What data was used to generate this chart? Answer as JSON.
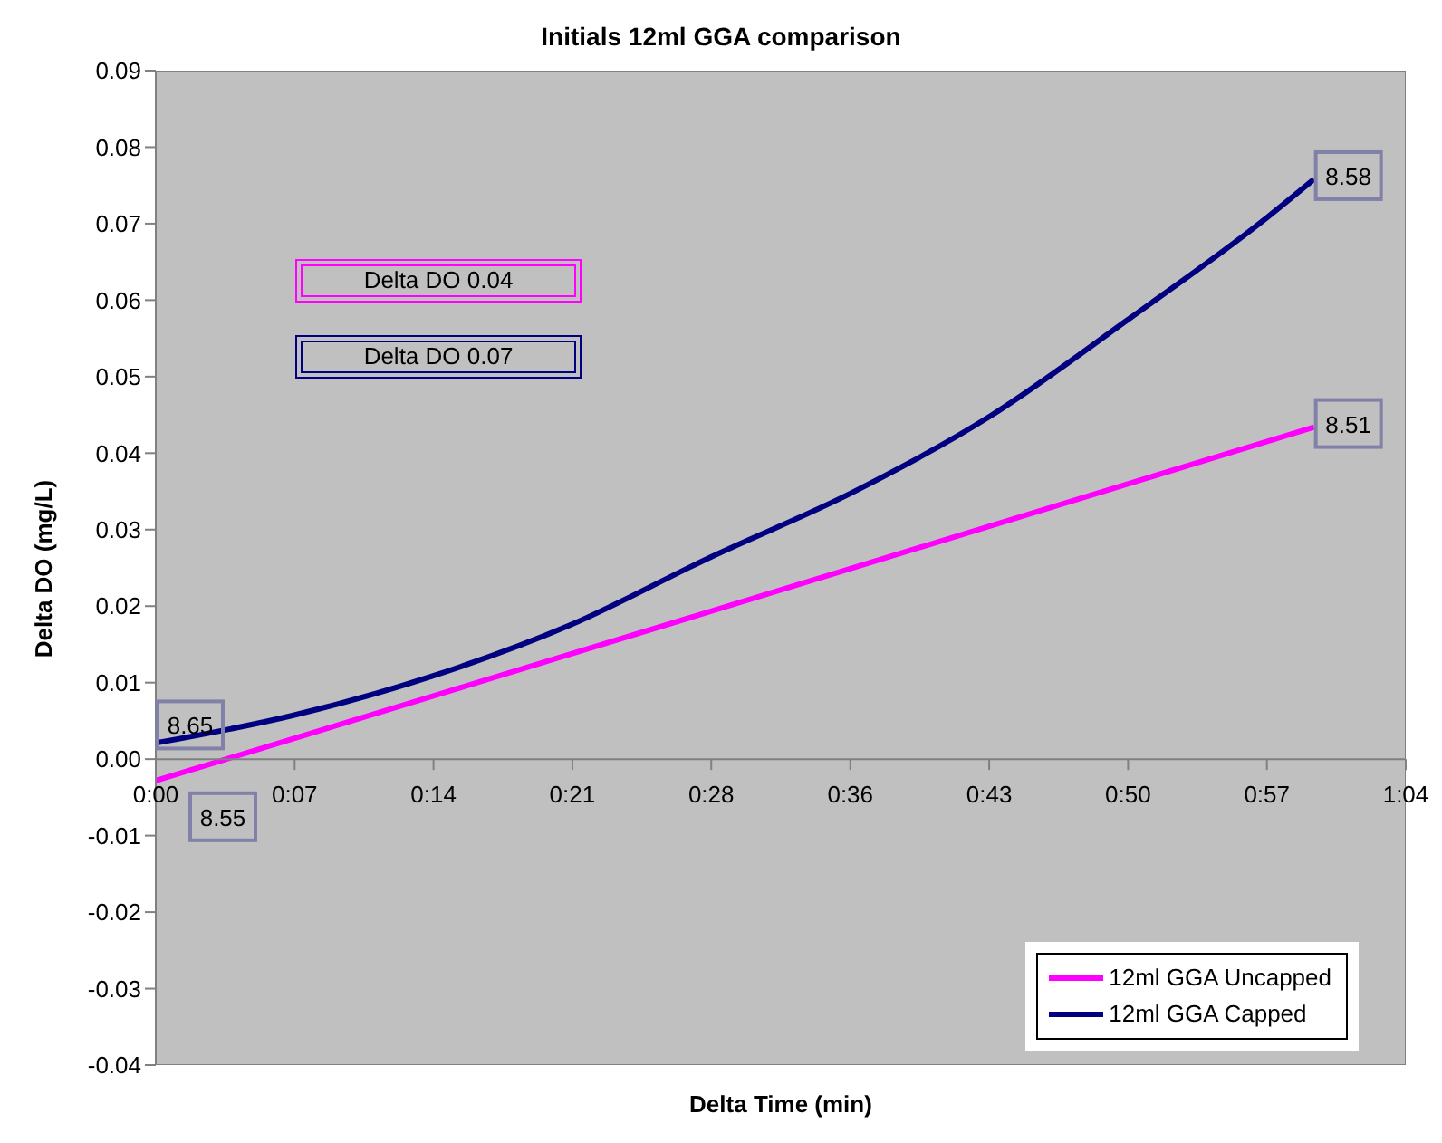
{
  "chart_data": {
    "type": "line",
    "title": "Initials 12ml GGA comparison",
    "xlabel": "Delta Time (min)",
    "ylabel": "Delta DO (mg/L)",
    "series": [
      {
        "name": "12ml GGA Uncapped",
        "color": "#ff00ff",
        "x": [
          0,
          21.2,
          59.3
        ],
        "values": [
          -0.0028,
          0.0137,
          0.0434
        ]
      },
      {
        "name": "12ml GGA Capped",
        "color": "#000080",
        "x": [
          0,
          7.0,
          14.1,
          21.2,
          28.4,
          35.7,
          42.7,
          49.8,
          56.9,
          59.3
        ],
        "values": [
          0.0021,
          0.0057,
          0.0108,
          0.0175,
          0.0264,
          0.0349,
          0.0448,
          0.0575,
          0.0708,
          0.0758
        ]
      }
    ],
    "annotations": [
      "Delta DO 0.04",
      "Delta DO 0.07",
      "8.55",
      "8.51",
      "8.65",
      "8.58"
    ],
    "xlim": [
      0,
      64
    ],
    "xticks": [
      {
        "value": 0,
        "label": "0:00"
      },
      {
        "value": 7.11,
        "label": "0:07"
      },
      {
        "value": 14.22,
        "label": "0:14"
      },
      {
        "value": 21.33,
        "label": "0:21"
      },
      {
        "value": 28.44,
        "label": "0:28"
      },
      {
        "value": 35.56,
        "label": "0:36"
      },
      {
        "value": 42.67,
        "label": "0:43"
      },
      {
        "value": 49.78,
        "label": "0:50"
      },
      {
        "value": 56.89,
        "label": "0:57"
      },
      {
        "value": 64,
        "label": "1:04"
      }
    ],
    "ylim": [
      -0.04,
      0.09
    ],
    "yticks": [
      {
        "value": -0.04,
        "label": "-0.04"
      },
      {
        "value": -0.03,
        "label": "-0.03"
      },
      {
        "value": -0.02,
        "label": "-0.02"
      },
      {
        "value": -0.01,
        "label": "-0.01"
      },
      {
        "value": 0,
        "label": "0.00"
      },
      {
        "value": 0.01,
        "label": "0.01"
      },
      {
        "value": 0.02,
        "label": "0.02"
      },
      {
        "value": 0.03,
        "label": "0.03"
      },
      {
        "value": 0.04,
        "label": "0.04"
      },
      {
        "value": 0.05,
        "label": "0.05"
      },
      {
        "value": 0.06,
        "label": "0.06"
      },
      {
        "value": 0.07,
        "label": "0.07"
      },
      {
        "value": 0.08,
        "label": "0.08"
      },
      {
        "value": 0.09,
        "label": "0.09"
      }
    ],
    "grid": false,
    "legend": "bottom right",
    "marker": "none",
    "line_style": "solid"
  }
}
